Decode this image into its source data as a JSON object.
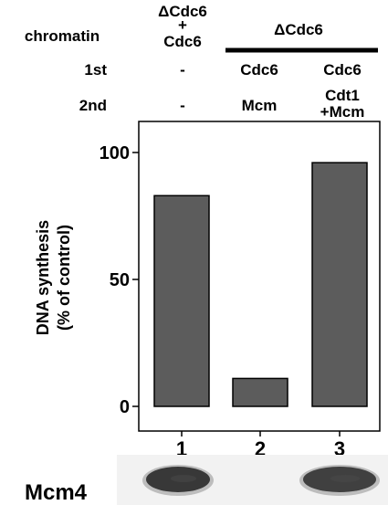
{
  "header": {
    "chromatin_label": "chromatin",
    "first_label": "1st",
    "second_label": "2nd",
    "lane1_chromatin_line1": "ΔCdc6",
    "lane1_chromatin_plus": "+",
    "lane1_chromatin_line2": "Cdc6",
    "group_label": "ΔCdc6",
    "lane1_first": "-",
    "lane2_first": "Cdc6",
    "lane3_first": "Cdc6",
    "lane1_second": "-",
    "lane2_second": "Mcm",
    "lane3_second_line1": "Cdt1",
    "lane3_second_line2": "+Mcm"
  },
  "chart_data": {
    "type": "bar",
    "categories": [
      "1",
      "2",
      "3"
    ],
    "values": [
      83,
      11,
      96
    ],
    "ylabel_line1": "DNA synthesis",
    "ylabel_line2": "(% of control)",
    "ylim": [
      0,
      100
    ],
    "yticks": [
      0,
      50,
      100
    ],
    "grid": false,
    "bar_color": "#5c5c5c"
  },
  "blot": {
    "label": "Mcm4",
    "band_intensities": [
      0.9,
      0.0,
      0.85
    ]
  }
}
